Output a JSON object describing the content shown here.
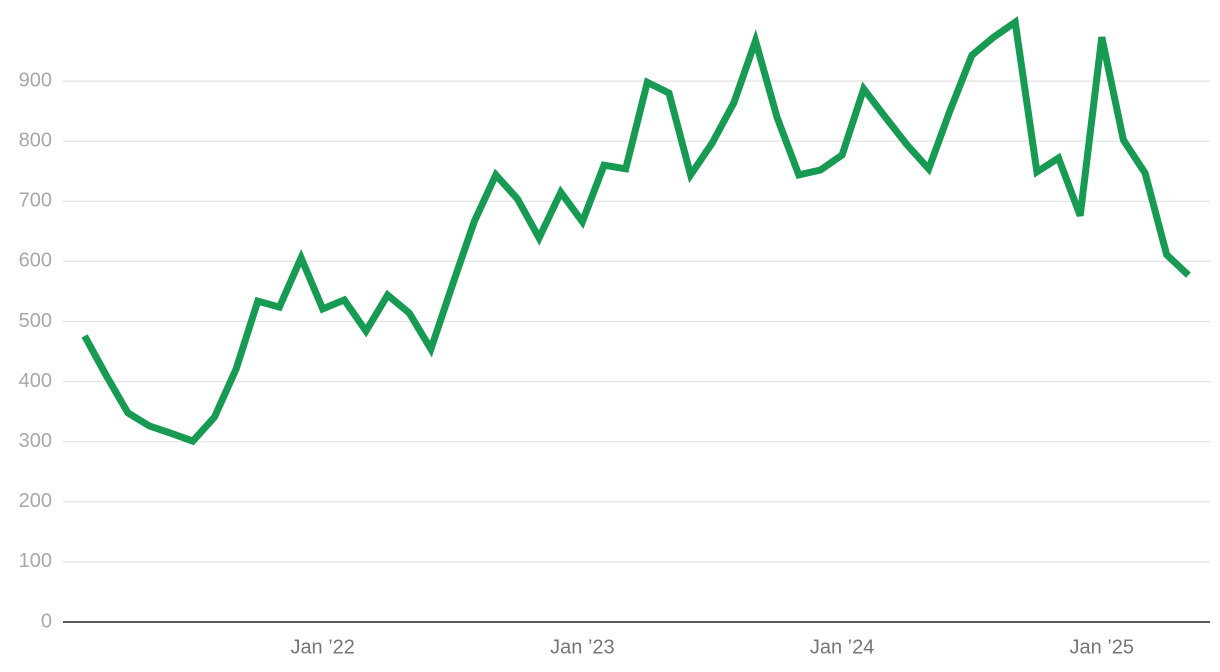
{
  "chart_data": {
    "type": "line",
    "x": [
      "2021-02",
      "2021-03",
      "2021-04",
      "2021-05",
      "2021-06",
      "2021-07",
      "2021-08",
      "2021-09",
      "2021-10",
      "2021-11",
      "2021-12",
      "2022-01",
      "2022-02",
      "2022-03",
      "2022-04",
      "2022-05",
      "2022-06",
      "2022-07",
      "2022-08",
      "2022-09",
      "2022-10",
      "2022-11",
      "2022-12",
      "2023-01",
      "2023-02",
      "2023-03",
      "2023-04",
      "2023-05",
      "2023-06",
      "2023-07",
      "2023-08",
      "2023-09",
      "2023-10",
      "2023-11",
      "2023-12",
      "2024-01",
      "2024-02",
      "2024-03",
      "2024-04",
      "2024-05",
      "2024-06",
      "2024-07",
      "2024-08",
      "2024-09",
      "2024-10",
      "2024-11",
      "2024-12",
      "2025-01",
      "2025-02",
      "2025-03",
      "2025-04",
      "2025-05"
    ],
    "values": [
      476,
      410,
      348,
      326,
      314,
      301,
      341,
      421,
      534,
      524,
      606,
      521,
      536,
      484,
      544,
      514,
      454,
      561,
      666,
      744,
      704,
      639,
      715,
      666,
      760,
      754,
      898,
      880,
      744,
      797,
      864,
      967,
      839,
      744,
      752,
      777,
      887,
      840,
      794,
      754,
      852,
      943,
      973,
      998,
      749,
      772,
      676,
      973,
      802,
      747,
      611,
      577
    ],
    "color": "#179a52",
    "xlim": [
      "2021-01",
      "2025-06"
    ],
    "xticks": [
      {
        "value": "2022-01",
        "label": "Jan ’22"
      },
      {
        "value": "2023-01",
        "label": "Jan ’23"
      },
      {
        "value": "2024-01",
        "label": "Jan ’24"
      },
      {
        "value": "2025-01",
        "label": "Jan ’25"
      }
    ],
    "ylim": [
      0,
      1000
    ],
    "yticks": [
      0,
      100,
      200,
      300,
      400,
      500,
      600,
      700,
      800,
      900
    ],
    "grid": true
  }
}
